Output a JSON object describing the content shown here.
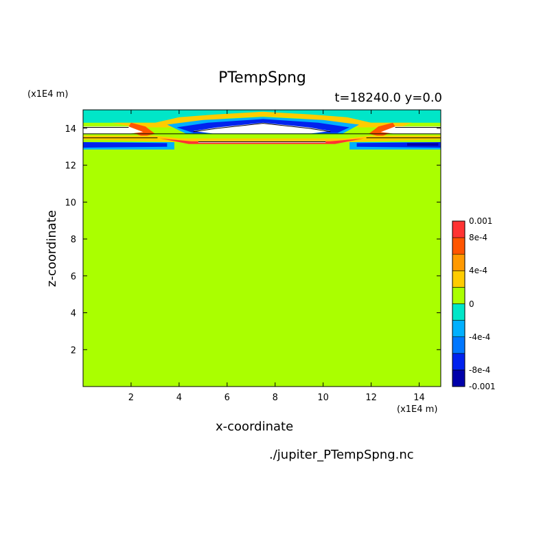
{
  "chart_data": {
    "type": "heatmap",
    "title": "PTempSpng",
    "subtitle": "t=18240.0 y=0.0",
    "xlabel": "x-coordinate",
    "ylabel": "z-coordinate",
    "x_unit": "(x1E4 m)",
    "y_unit": "(x1E4 m)",
    "source": "./jupiter_PTempSpng.nc",
    "xlim": [
      0,
      14.9
    ],
    "ylim": [
      0,
      15
    ],
    "x_ticks": [
      2,
      4,
      6,
      8,
      10,
      12,
      14
    ],
    "y_ticks": [
      2,
      4,
      6,
      8,
      10,
      12,
      14
    ],
    "colorbar": {
      "levels": [
        -0.001,
        -0.0008,
        -0.0006,
        -0.0004,
        -0.0002,
        0,
        0.0002,
        0.0004,
        0.0006,
        0.0008,
        0.001
      ],
      "colors": [
        "#0000aa",
        "#0022ee",
        "#0077ff",
        "#00b0ff",
        "#00e6c8",
        "#aaff00",
        "#ffcc00",
        "#ff9900",
        "#ff5500",
        "#ff3333"
      ],
      "tick_labels": [
        "0.001",
        "8e-4",
        "4e-4",
        "0",
        "-4e-4",
        "-8e-4",
        "-0.001"
      ],
      "tick_values": [
        0.001,
        0.0008,
        0.0004,
        0,
        -0.0004,
        -0.0008,
        -0.001
      ]
    },
    "background_value": 0,
    "background_color": "#aaff00",
    "bands": [
      {
        "value": -0.0003,
        "color": "#00e6c8",
        "points": [
          [
            0,
            15
          ],
          [
            14.9,
            15
          ],
          [
            14.9,
            14.3
          ],
          [
            11,
            14.3
          ],
          [
            9.5,
            14.6
          ],
          [
            7.5,
            14.8
          ],
          [
            5.5,
            14.6
          ],
          [
            4,
            14.3
          ],
          [
            0,
            14.3
          ]
        ]
      },
      {
        "value": 0.0004,
        "color": "#ffcc00",
        "points": [
          [
            1.2,
            14.3
          ],
          [
            3,
            14.3
          ],
          [
            4,
            14.6
          ],
          [
            5.5,
            14.75
          ],
          [
            7.5,
            14.9
          ],
          [
            9.5,
            14.75
          ],
          [
            11,
            14.6
          ],
          [
            12,
            14.3
          ],
          [
            13.7,
            14.3
          ],
          [
            13.2,
            14.05
          ],
          [
            11.5,
            14.05
          ],
          [
            10.5,
            14.3
          ],
          [
            9,
            14.55
          ],
          [
            7.5,
            14.65
          ],
          [
            6,
            14.55
          ],
          [
            4.8,
            14.3
          ],
          [
            3.8,
            14.05
          ],
          [
            2.2,
            14.05
          ]
        ]
      },
      {
        "value": -0.0005,
        "color": "#00b0ff",
        "points": [
          [
            3.5,
            14.2
          ],
          [
            5,
            14.45
          ],
          [
            7.5,
            14.62
          ],
          [
            10,
            14.45
          ],
          [
            11.5,
            14.2
          ],
          [
            10.8,
            13.7
          ],
          [
            4.3,
            13.7
          ]
        ]
      },
      {
        "value": -0.0008,
        "color": "#0022ee",
        "points": [
          [
            3.9,
            14.05
          ],
          [
            5.2,
            14.3
          ],
          [
            7.5,
            14.5
          ],
          [
            9.8,
            14.3
          ],
          [
            11.1,
            14.05
          ],
          [
            10.6,
            13.75
          ],
          [
            4.6,
            13.75
          ]
        ]
      },
      {
        "value": 0.0008,
        "color": "#ff5500",
        "points": [
          [
            2,
            14.3
          ],
          [
            2.6,
            14.1
          ],
          [
            3,
            13.7
          ],
          [
            2.5,
            13.55
          ],
          [
            1.8,
            13.9
          ]
        ]
      },
      {
        "value": 0.0008,
        "color": "#ff5500",
        "points": [
          [
            12.9,
            14.3
          ],
          [
            12.3,
            14.1
          ],
          [
            11.9,
            13.7
          ],
          [
            12.4,
            13.55
          ],
          [
            13.1,
            13.9
          ]
        ]
      },
      {
        "value": 0.0004,
        "color": "#ffcc00",
        "points": [
          [
            0,
            13.6
          ],
          [
            3,
            13.6
          ],
          [
            4,
            13.45
          ],
          [
            11,
            13.45
          ],
          [
            12,
            13.6
          ],
          [
            14.9,
            13.6
          ],
          [
            14.9,
            13.4
          ],
          [
            11,
            13.25
          ],
          [
            4,
            13.25
          ],
          [
            0,
            13.4
          ]
        ]
      },
      {
        "value": 0.0009,
        "color": "#ff3333",
        "points": [
          [
            3.2,
            13.45
          ],
          [
            4.5,
            13.3
          ],
          [
            10.3,
            13.3
          ],
          [
            11.7,
            13.45
          ],
          [
            10.5,
            13.15
          ],
          [
            4.4,
            13.15
          ]
        ]
      },
      {
        "value": -0.0005,
        "color": "#00b0ff",
        "points": [
          [
            0,
            13.25
          ],
          [
            3.8,
            13.25
          ],
          [
            3.8,
            12.85
          ],
          [
            0,
            12.85
          ]
        ]
      },
      {
        "value": -0.0005,
        "color": "#00b0ff",
        "points": [
          [
            11.1,
            13.25
          ],
          [
            14.9,
            13.25
          ],
          [
            14.9,
            12.85
          ],
          [
            11.1,
            12.85
          ]
        ]
      },
      {
        "value": -0.0009,
        "color": "#0022ee",
        "points": [
          [
            0,
            13.25
          ],
          [
            3.5,
            13.2
          ],
          [
            3.5,
            13.0
          ],
          [
            0,
            12.95
          ]
        ]
      },
      {
        "value": -0.0009,
        "color": "#0022ee",
        "points": [
          [
            11.4,
            13.2
          ],
          [
            14.9,
            13.25
          ],
          [
            14.9,
            12.95
          ],
          [
            11.4,
            13.0
          ]
        ]
      },
      {
        "value": -0.0012,
        "color": "#0000aa",
        "points": [
          [
            13.5,
            13.2
          ],
          [
            14.8,
            13.2
          ],
          [
            14.8,
            13.05
          ],
          [
            13.5,
            13.05
          ]
        ]
      },
      {
        "value": null,
        "color": "#ffffff",
        "points": [
          [
            0,
            14.1
          ],
          [
            1.9,
            14.1
          ],
          [
            2.5,
            13.8
          ],
          [
            1.9,
            13.7
          ],
          [
            0,
            13.7
          ]
        ]
      },
      {
        "value": null,
        "color": "#ffffff",
        "points": [
          [
            14.9,
            14.1
          ],
          [
            13.0,
            14.1
          ],
          [
            12.4,
            13.8
          ],
          [
            13.0,
            13.7
          ],
          [
            14.9,
            13.7
          ]
        ]
      },
      {
        "value": null,
        "color": "#ffffff",
        "points": [
          [
            4.6,
            13.85
          ],
          [
            5.6,
            14.05
          ],
          [
            7.5,
            14.3
          ],
          [
            9.4,
            14.05
          ],
          [
            10.3,
            13.85
          ],
          [
            9.5,
            13.72
          ],
          [
            5.4,
            13.72
          ]
        ]
      },
      {
        "value": null,
        "color": "#ffffff",
        "points": [
          [
            4.8,
            13.3
          ],
          [
            10.1,
            13.3
          ],
          [
            10.1,
            13.22
          ],
          [
            4.8,
            13.22
          ]
        ]
      }
    ],
    "contour_lines": [
      [
        [
          0,
          14.05
        ],
        [
          1.9,
          14.05
        ]
      ],
      [
        [
          13.0,
          14.05
        ],
        [
          14.9,
          14.05
        ]
      ],
      [
        [
          0,
          13.7
        ],
        [
          2.2,
          13.7
        ],
        [
          12.6,
          13.7
        ],
        [
          14.9,
          13.7
        ]
      ],
      [
        [
          0,
          13.48
        ],
        [
          3.1,
          13.48
        ]
      ],
      [
        [
          11.8,
          13.48
        ],
        [
          14.9,
          13.48
        ]
      ],
      [
        [
          4.6,
          13.82
        ],
        [
          5.6,
          14.0
        ],
        [
          7.5,
          14.27
        ],
        [
          9.4,
          14.0
        ],
        [
          10.3,
          13.82
        ]
      ],
      [
        [
          4.8,
          13.27
        ],
        [
          10.1,
          13.27
        ]
      ]
    ]
  }
}
